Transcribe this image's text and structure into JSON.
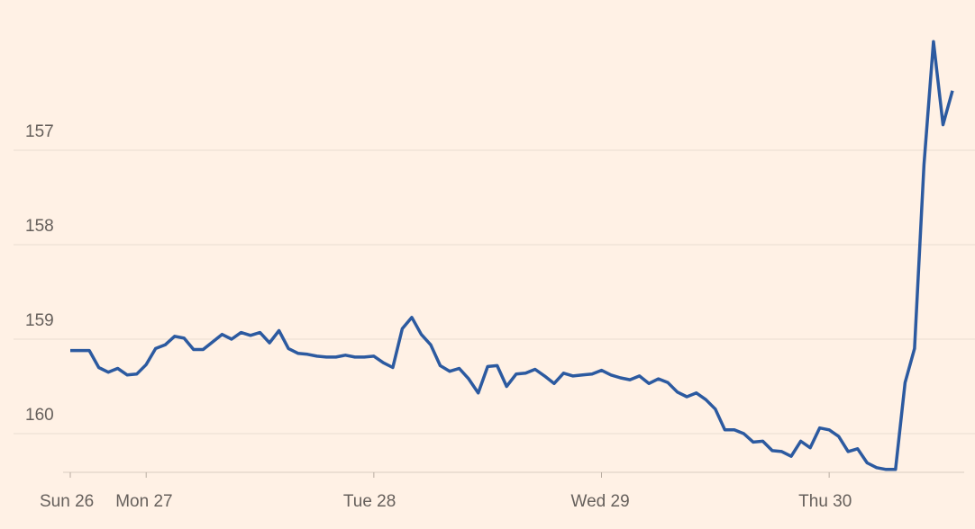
{
  "chart_data": {
    "type": "line",
    "categories": [
      "Sun 26",
      null,
      null,
      null,
      null,
      null,
      null,
      null,
      "Mon 27",
      null,
      null,
      null,
      null,
      null,
      null,
      null,
      null,
      null,
      null,
      null,
      null,
      null,
      null,
      null,
      null,
      null,
      null,
      null,
      null,
      null,
      null,
      null,
      "Tue 28",
      null,
      null,
      null,
      null,
      null,
      null,
      null,
      null,
      null,
      null,
      null,
      null,
      null,
      null,
      null,
      null,
      null,
      null,
      null,
      null,
      null,
      null,
      null,
      "Wed 29",
      null,
      null,
      null,
      null,
      null,
      null,
      null,
      null,
      null,
      null,
      null,
      null,
      null,
      null,
      null,
      null,
      null,
      null,
      null,
      null,
      null,
      null,
      null,
      "Thu 30",
      null,
      null,
      null,
      null,
      null,
      null,
      null,
      null,
      null,
      null,
      null,
      null,
      null
    ],
    "values": [
      159.31,
      159.31,
      159.31,
      159.49,
      159.54,
      159.5,
      159.57,
      159.56,
      159.46,
      159.29,
      159.25,
      159.16,
      159.18,
      159.3,
      159.3,
      159.22,
      159.14,
      159.19,
      159.12,
      159.15,
      159.12,
      159.23,
      159.1,
      159.29,
      159.34,
      159.35,
      159.37,
      159.38,
      159.38,
      159.36,
      159.38,
      159.38,
      159.37,
      159.44,
      159.49,
      159.08,
      158.96,
      159.14,
      159.25,
      159.47,
      159.53,
      159.5,
      159.61,
      159.76,
      159.48,
      159.47,
      159.69,
      159.56,
      159.55,
      159.51,
      159.58,
      159.66,
      159.55,
      159.58,
      159.57,
      159.56,
      159.52,
      159.57,
      159.6,
      159.62,
      159.58,
      159.66,
      159.61,
      159.65,
      159.75,
      159.8,
      159.76,
      159.83,
      159.93,
      160.15,
      160.15,
      160.19,
      160.28,
      160.27,
      160.37,
      160.38,
      160.43,
      160.27,
      160.34,
      160.13,
      160.15,
      160.22,
      160.38,
      160.35,
      160.5,
      160.55,
      160.57,
      160.57,
      159.65,
      159.29,
      157.34,
      156.04,
      156.92,
      156.56
    ],
    "color": "#2c5aa0",
    "ylim": [
      155.6,
      160.6
    ],
    "y_inverted": true,
    "yticks": [
      157,
      158,
      159,
      160
    ],
    "grid": true
  }
}
